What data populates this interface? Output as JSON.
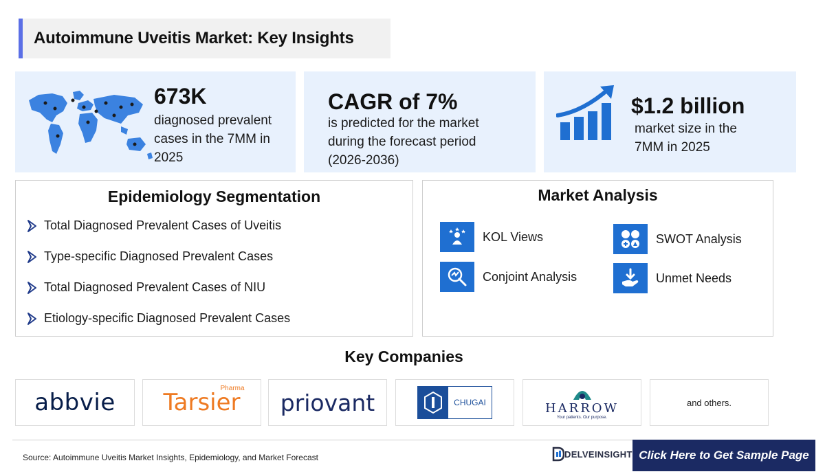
{
  "header": {
    "title": "Autoimmune Uveitis Market: Key Insights"
  },
  "stats": [
    {
      "value": "673K",
      "lines": [
        "diagnosed prevalent",
        "cases in the 7MM in",
        "2025"
      ],
      "icon": "world-map-icon"
    },
    {
      "value": "CAGR of 7%",
      "lines": [
        "is predicted for the market",
        "during the forecast period",
        "(2026-2036)"
      ]
    },
    {
      "value": "$1.2 billion",
      "lines": [
        "market size in the",
        "7MM in 2025"
      ],
      "icon": "growth-chart-icon"
    }
  ],
  "epidemiology": {
    "title": "Epidemiology Segmentation",
    "items": [
      "Total Diagnosed Prevalent Cases of Uveitis",
      "Type-specific Diagnosed Prevalent Cases",
      "Total Diagnosed Prevalent Cases of NIU",
      "Etiology-specific Diagnosed Prevalent Cases"
    ]
  },
  "market_analysis": {
    "title": "Market Analysis",
    "items": [
      {
        "label": "KOL Views",
        "icon": "kol-icon"
      },
      {
        "label": "SWOT Analysis",
        "icon": "swot-icon"
      },
      {
        "label": "Conjoint Analysis",
        "icon": "conjoint-icon"
      },
      {
        "label": "Unmet Needs",
        "icon": "unmet-needs-icon"
      }
    ]
  },
  "companies": {
    "title": "Key Companies",
    "logos": {
      "abbvie": "abbvie",
      "tarsier": "Tarsier",
      "tarsier_super": "Pharma",
      "priovant": "priovant",
      "chugai": "CHUGAI",
      "harrow": "HARROW",
      "harrow_tag": "Your patients. Our purpose."
    },
    "others": "and others."
  },
  "footer": {
    "source": "Source: Autoimmune Uveitis Market Insights, Epidemiology, and Market Forecast",
    "brand": "DELVEINSIGHT",
    "cta": "Click Here to Get Sample Page"
  },
  "colors": {
    "accent": "#1f6fd1",
    "navy": "#1b2a63",
    "stat_bg": "#e8f1fd",
    "title_bar": "#5b6fe6"
  }
}
